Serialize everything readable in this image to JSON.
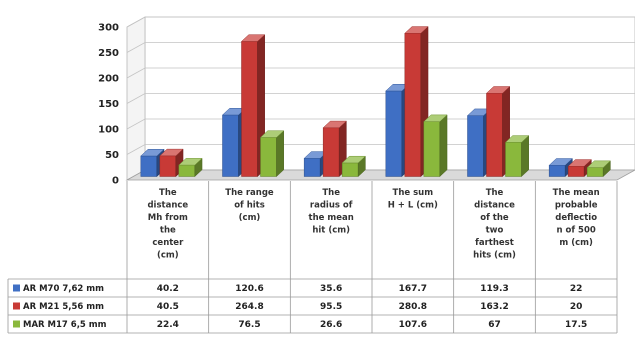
{
  "chart_data": {
    "type": "bar",
    "layout": "3d-clustered-column-with-data-table",
    "categories": [
      [
        "The",
        "distance",
        "Mh from",
        "the",
        "center",
        "(cm)"
      ],
      [
        "The range",
        "of hits",
        "(cm)"
      ],
      [
        "The",
        "radius of",
        "the mean",
        "hit (cm)"
      ],
      [
        "The sum",
        "H + L (cm)"
      ],
      [
        "The",
        "distance",
        "of the",
        "two",
        "farthest",
        "hits (cm)"
      ],
      [
        "The mean",
        "probable",
        "deflectio",
        "n of 500",
        "m (cm)"
      ]
    ],
    "series": [
      {
        "name": "AR M70 7,62  mm",
        "color": "#3f6fc4",
        "values": [
          40.2,
          120.6,
          35.6,
          167.7,
          119.3,
          22
        ],
        "labels": [
          "40.2",
          "120.6",
          "35.6",
          "167.7",
          "119.3",
          "22"
        ]
      },
      {
        "name": "AR M21 5,56  mm",
        "color": "#c83a36",
        "values": [
          40.5,
          264.8,
          95.5,
          280.8,
          163.2,
          20
        ],
        "labels": [
          "40.5",
          "264.8",
          "95.5",
          "280.8",
          "163.2",
          "20"
        ]
      },
      {
        "name": "MAR M17 6,5  mm",
        "color": "#8ab83c",
        "values": [
          22.4,
          76.5,
          26.6,
          107.6,
          67,
          17.5
        ],
        "labels": [
          "22.4",
          "76.5",
          "26.6",
          "107.6",
          "67",
          "17.5"
        ]
      }
    ],
    "yticks": [
      0,
      50,
      100,
      150,
      200,
      250,
      300
    ],
    "ylim": [
      0,
      300
    ],
    "grid": true,
    "legend": "data-table-left"
  }
}
